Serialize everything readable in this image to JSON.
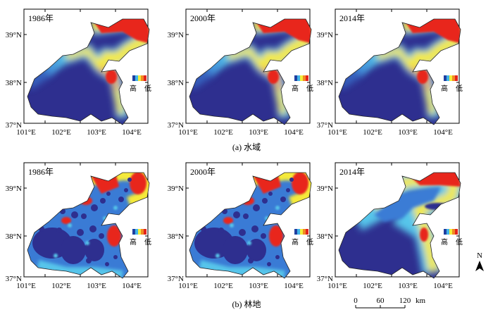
{
  "captions": {
    "a": "(a) 水域",
    "b": "(b) 林地"
  },
  "y_ticks": [
    "39°N",
    "38°N",
    "37°N"
  ],
  "x_ticks": [
    "101°E",
    "102°E",
    "103°E",
    "104°E"
  ],
  "legend": {
    "high": "高",
    "low": "低",
    "colors": [
      "#1f3fa0",
      "#3fb4e8",
      "#f2ee3a",
      "#f28a22",
      "#e3241c"
    ]
  },
  "panels": [
    {
      "id": "a1986",
      "title": "1986年",
      "row": "water",
      "style": "water"
    },
    {
      "id": "a2000",
      "title": "2000年",
      "row": "water",
      "style": "water"
    },
    {
      "id": "a2014",
      "title": "2014年",
      "row": "water",
      "style": "water"
    },
    {
      "id": "b1986",
      "title": "1986年",
      "row": "forest",
      "style": "forest"
    },
    {
      "id": "b2000",
      "title": "2000年",
      "row": "forest",
      "style": "forest"
    },
    {
      "id": "b2014",
      "title": "2014年",
      "row": "forest",
      "style": "forest-smooth"
    }
  ],
  "north_arrow": "N",
  "scale_bar": {
    "ticks": [
      "0",
      "60",
      "120"
    ],
    "unit": "km"
  },
  "colors": {
    "dark": "#2e2f8f",
    "blue": "#3a7bd5",
    "cyan": "#56c5ea",
    "yellow": "#f5ea3a",
    "orange": "#f4a12a",
    "red": "#e8251f"
  }
}
